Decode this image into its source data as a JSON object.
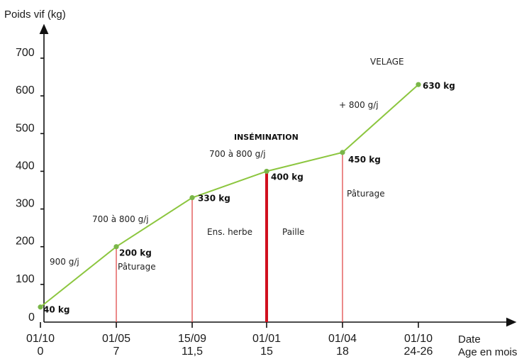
{
  "chart_data": {
    "type": "line",
    "title": "",
    "ylabel": "Poids vif (kg)",
    "xlabel": "Date",
    "xlabel2": "Age en mois",
    "ylim": [
      0,
      700
    ],
    "yticks": [
      0,
      100,
      200,
      300,
      400,
      500,
      600,
      700
    ],
    "grid": false,
    "categories": [
      "01/10",
      "01/05",
      "15/09",
      "01/01",
      "01/04",
      "01/10"
    ],
    "ages": [
      "0",
      "7",
      "11,5",
      "15",
      "18",
      "24-26"
    ],
    "values": [
      40,
      200,
      330,
      400,
      450,
      630
    ],
    "point_labels": [
      "40 kg",
      "200 kg",
      "330 kg",
      "400 kg",
      "450 kg",
      "630 kg"
    ],
    "drop_lines": [
      {
        "index": 1,
        "emphasis": false
      },
      {
        "index": 2,
        "emphasis": false
      },
      {
        "index": 3,
        "emphasis": true
      },
      {
        "index": 4,
        "emphasis": false
      }
    ],
    "annotations": [
      {
        "text": "900 g/j",
        "style": "normal"
      },
      {
        "text": "Pâturage",
        "style": "normal"
      },
      {
        "text": "700 à 800 g/j",
        "style": "normal"
      },
      {
        "text": "Ens. herbe",
        "style": "normal"
      },
      {
        "text": "Paille",
        "style": "normal"
      },
      {
        "text": "700 à 800 g/j",
        "style": "normal"
      },
      {
        "text": "INSÉMINATION",
        "style": "bold"
      },
      {
        "text": "Pâturage",
        "style": "normal"
      },
      {
        "text": "+ 800 g/j",
        "style": "normal"
      },
      {
        "text": "VELAGE",
        "style": "normal"
      }
    ],
    "colors": {
      "line": "#8cc63f",
      "point": "#7ab648",
      "drop_line": "#e04a4a",
      "drop_line_emphasis": "#d0101e",
      "axis": "#111111"
    }
  }
}
